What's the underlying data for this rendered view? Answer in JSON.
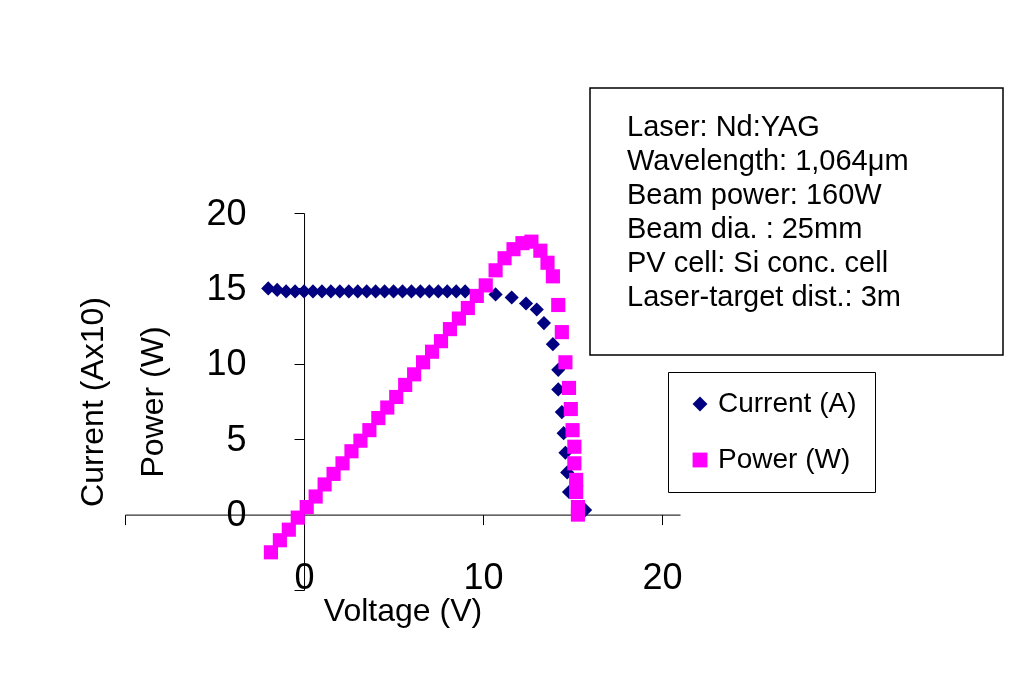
{
  "chart_data": {
    "type": "scatter",
    "xlabel": "Voltage (V)",
    "ylabel": "Current (Ax10)\nPower (W)",
    "xlim": [
      -10,
      21
    ],
    "xticks": [
      {
        "value": -10,
        "label": null
      },
      0,
      10,
      20
    ],
    "ylim": [
      -5,
      20
    ],
    "yticks": [
      {
        "value": -5,
        "label": null
      },
      0,
      5,
      10,
      15,
      20
    ],
    "grid": false,
    "legend": "right",
    "annotations": [
      "Laser: Nd:YAG",
      "Wavelength:  1,064μm",
      "Beam power: 160W",
      "Beam dia. : 25mm",
      "PV cell: Si conc. cell",
      "Laser-target dist.: 3m"
    ],
    "series": [
      {
        "name": "Current (A)",
        "color": "#000080",
        "marker": "diamond",
        "x": [
          -2.0,
          -1.5,
          -1.0,
          -0.5,
          0.0,
          0.5,
          1.0,
          1.5,
          2.0,
          2.5,
          3.0,
          3.5,
          4.0,
          4.5,
          5.0,
          5.5,
          6.0,
          6.5,
          7.0,
          7.5,
          8.0,
          8.5,
          9.0,
          9.5,
          10.0,
          10.7,
          11.6,
          12.4,
          13.0,
          13.4,
          13.9,
          14.2,
          14.2,
          14.4,
          14.5,
          14.6,
          14.7,
          14.8,
          15.7
        ],
        "values": [
          15.0,
          14.9,
          14.8,
          14.8,
          14.8,
          14.8,
          14.8,
          14.8,
          14.8,
          14.8,
          14.8,
          14.8,
          14.8,
          14.8,
          14.8,
          14.8,
          14.8,
          14.8,
          14.8,
          14.8,
          14.8,
          14.8,
          14.8,
          null,
          null,
          14.6,
          14.4,
          14.0,
          13.6,
          12.7,
          11.3,
          9.6,
          8.3,
          6.8,
          5.4,
          4.1,
          2.8,
          1.5,
          0.3
        ]
      },
      {
        "name": "Power (W)",
        "color": "#ff00ff",
        "marker": "square",
        "x": [
          -1.85,
          -1.35,
          -0.85,
          -0.35,
          0.15,
          0.65,
          1.15,
          1.65,
          2.15,
          2.65,
          3.15,
          3.65,
          4.15,
          4.65,
          5.15,
          5.65,
          6.15,
          6.65,
          7.15,
          7.65,
          8.15,
          8.65,
          9.15,
          9.65,
          10.15,
          10.7,
          11.2,
          11.7,
          12.2,
          12.7,
          13.2,
          13.6,
          13.9,
          14.2,
          14.4,
          14.6,
          14.8,
          14.9,
          15.0,
          15.1,
          15.1,
          15.2,
          15.2,
          15.3,
          15.3
        ],
        "values": [
          -2.5,
          -1.7,
          -1.0,
          -0.2,
          0.5,
          1.2,
          2.0,
          2.7,
          3.4,
          4.2,
          4.9,
          5.6,
          6.4,
          7.1,
          7.8,
          8.6,
          9.3,
          10.1,
          10.8,
          11.5,
          12.3,
          13.0,
          13.7,
          14.5,
          15.2,
          16.2,
          17.0,
          17.6,
          18.0,
          18.1,
          17.5,
          16.7,
          15.8,
          13.9,
          12.1,
          10.1,
          8.4,
          7.0,
          5.6,
          4.5,
          3.4,
          2.3,
          1.5,
          0.5,
          0.0
        ]
      }
    ]
  }
}
